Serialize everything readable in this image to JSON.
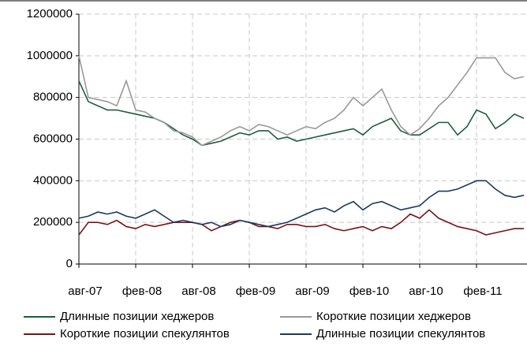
{
  "chart_data": {
    "type": "line",
    "categories": [
      "авг-07",
      null,
      null,
      null,
      null,
      null,
      "фев-08",
      null,
      null,
      null,
      null,
      null,
      "авг-08",
      null,
      null,
      null,
      null,
      null,
      "фев-09",
      null,
      null,
      null,
      null,
      null,
      "авг-09",
      null,
      null,
      null,
      null,
      null,
      "фев-10",
      null,
      null,
      null,
      null,
      null,
      "авг-10",
      null,
      null,
      null,
      null,
      null,
      "фев-11",
      null,
      null,
      null,
      null,
      null
    ],
    "series": [
      {
        "name": "Длинные позиции хеджеров",
        "color": "#1e5e3a",
        "values": [
          880000,
          780000,
          760000,
          740000,
          740000,
          730000,
          720000,
          710000,
          700000,
          680000,
          650000,
          620000,
          600000,
          570000,
          580000,
          590000,
          610000,
          630000,
          620000,
          640000,
          640000,
          600000,
          610000,
          590000,
          600000,
          610000,
          620000,
          630000,
          640000,
          650000,
          620000,
          660000,
          680000,
          700000,
          640000,
          620000,
          620000,
          650000,
          680000,
          680000,
          620000,
          660000,
          740000,
          720000,
          650000,
          680000,
          720000,
          700000
        ]
      },
      {
        "name": "Короткие позиции хеджеров",
        "color": "#999999",
        "values": [
          1000000,
          800000,
          790000,
          780000,
          760000,
          880000,
          740000,
          730000,
          700000,
          680000,
          640000,
          630000,
          610000,
          570000,
          590000,
          610000,
          640000,
          660000,
          640000,
          670000,
          660000,
          640000,
          620000,
          640000,
          660000,
          650000,
          680000,
          700000,
          740000,
          800000,
          760000,
          800000,
          840000,
          740000,
          660000,
          620000,
          650000,
          700000,
          760000,
          800000,
          860000,
          920000,
          990000,
          990000,
          990000,
          920000,
          890000,
          900000
        ]
      },
      {
        "name": "Короткие позиции спекулянтов",
        "color": "#7a1416",
        "values": [
          140000,
          200000,
          200000,
          190000,
          210000,
          180000,
          170000,
          190000,
          180000,
          190000,
          200000,
          200000,
          200000,
          190000,
          160000,
          180000,
          200000,
          210000,
          200000,
          180000,
          180000,
          170000,
          190000,
          190000,
          180000,
          180000,
          190000,
          170000,
          160000,
          170000,
          180000,
          160000,
          180000,
          170000,
          200000,
          240000,
          220000,
          260000,
          220000,
          200000,
          180000,
          170000,
          160000,
          140000,
          150000,
          160000,
          170000,
          170000
        ]
      },
      {
        "name": "Длинные позиции спекулянтов",
        "color": "#1c3a5e",
        "values": [
          220000,
          230000,
          250000,
          240000,
          250000,
          230000,
          220000,
          240000,
          260000,
          230000,
          200000,
          210000,
          200000,
          190000,
          200000,
          180000,
          190000,
          210000,
          200000,
          190000,
          180000,
          190000,
          200000,
          220000,
          240000,
          260000,
          270000,
          250000,
          280000,
          300000,
          260000,
          290000,
          300000,
          280000,
          260000,
          270000,
          280000,
          320000,
          350000,
          350000,
          360000,
          380000,
          400000,
          400000,
          360000,
          330000,
          320000,
          330000
        ]
      }
    ],
    "ylim": [
      0,
      1200000
    ],
    "yticks": [
      0,
      200000,
      400000,
      600000,
      800000,
      1000000,
      1200000
    ],
    "grid": true
  }
}
